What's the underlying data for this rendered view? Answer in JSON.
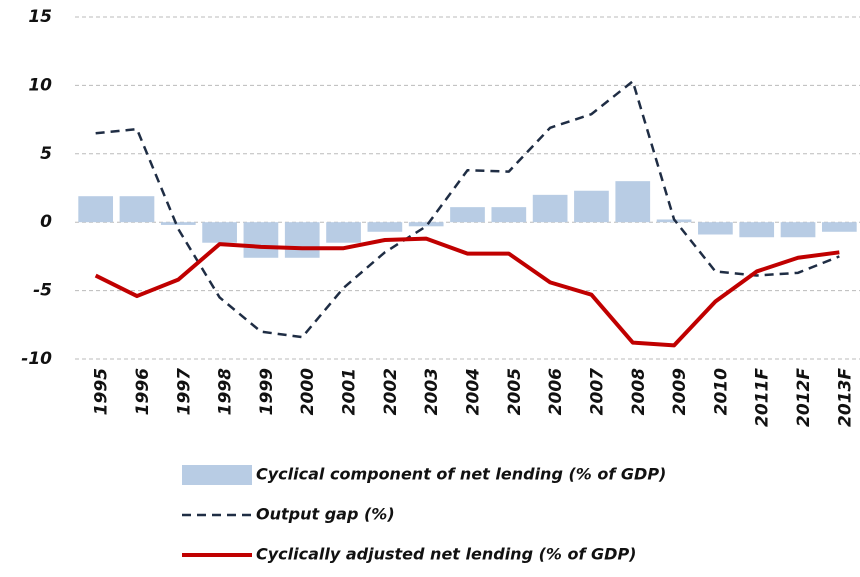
{
  "chart_data": {
    "type": "bar_line",
    "categories": [
      "1995",
      "1996",
      "1997",
      "1998",
      "1999",
      "2000",
      "2001",
      "2002",
      "2003",
      "2004",
      "2005",
      "2006",
      "2007",
      "2008",
      "2009",
      "2010",
      "2011F",
      "2012F",
      "2013F"
    ],
    "series": [
      {
        "name": "Cyclical component of net lending (% of GDP)",
        "type": "bar",
        "color": "#b8cce4",
        "values": [
          1.9,
          1.9,
          -0.2,
          -1.5,
          -2.6,
          -2.6,
          -1.5,
          -0.7,
          -0.3,
          1.1,
          1.1,
          2.0,
          2.3,
          3.0,
          0.2,
          -0.9,
          -1.1,
          -1.1,
          -0.7
        ]
      },
      {
        "name": "Output gap (%)",
        "type": "line",
        "dashed": true,
        "color": "#1f2d44",
        "values": [
          6.5,
          6.8,
          -0.5,
          -5.5,
          -8.0,
          -8.4,
          -4.8,
          -2.2,
          -0.3,
          3.8,
          3.7,
          6.9,
          7.9,
          10.3,
          0.2,
          -3.6,
          -3.9,
          -3.7,
          -2.5
        ]
      },
      {
        "name": "Cyclically adjusted net lending (% of GDP)",
        "type": "line",
        "dashed": false,
        "color": "#c00000",
        "values": [
          -3.9,
          -5.4,
          -4.2,
          -1.6,
          -1.8,
          -1.9,
          -1.9,
          -1.3,
          -1.2,
          -2.3,
          -2.3,
          -4.4,
          -5.3,
          -8.8,
          -9.0,
          -5.8,
          -3.6,
          -2.6,
          -2.2
        ]
      }
    ],
    "ylim": [
      -10,
      15
    ],
    "yticks": [
      -10,
      -5,
      0,
      5,
      10,
      15
    ],
    "grid": true
  }
}
